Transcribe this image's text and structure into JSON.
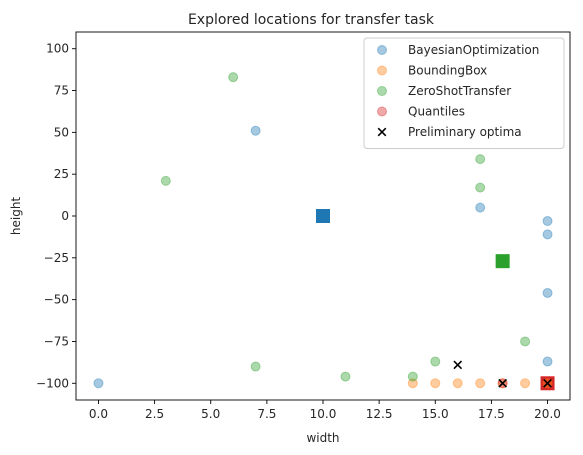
{
  "chart_data": {
    "type": "scatter",
    "title": "Explored locations for transfer task",
    "xlabel": "width",
    "ylabel": "height",
    "xlim": [
      -1,
      21
    ],
    "ylim": [
      -110,
      110
    ],
    "xticks": [
      0.0,
      2.5,
      5.0,
      7.5,
      10.0,
      12.5,
      15.0,
      17.5,
      20.0
    ],
    "xtick_labels": [
      "0.0",
      "2.5",
      "5.0",
      "7.5",
      "10.0",
      "12.5",
      "15.0",
      "17.5",
      "20.0"
    ],
    "yticks": [
      -100,
      -75,
      -50,
      -25,
      0,
      25,
      50,
      75,
      100
    ],
    "ytick_labels": [
      "−100",
      "−75",
      "−50",
      "−25",
      "0",
      "25",
      "50",
      "75",
      "100"
    ],
    "grid": false,
    "legend_position": "top-right",
    "series": [
      {
        "name": "BayesianOptimization",
        "color": "#1f77b4",
        "marker": "circle",
        "points": [
          [
            0,
            -100
          ],
          [
            7,
            51
          ],
          [
            17,
            5
          ],
          [
            20,
            -3
          ],
          [
            20,
            -11
          ],
          [
            20,
            -46
          ],
          [
            20,
            -87
          ]
        ],
        "optimum": [
          10,
          0
        ]
      },
      {
        "name": "BoundingBox",
        "color": "#ff7f0e",
        "marker": "circle",
        "points": [
          [
            14,
            -100
          ],
          [
            15,
            -100
          ],
          [
            16,
            -100
          ],
          [
            17,
            -100
          ],
          [
            18,
            -100
          ],
          [
            19,
            -100
          ],
          [
            20,
            -100
          ]
        ],
        "optimum": null
      },
      {
        "name": "ZeroShotTransfer",
        "color": "#2ca02c",
        "marker": "circle",
        "points": [
          [
            3,
            21
          ],
          [
            6,
            83
          ],
          [
            7,
            -90
          ],
          [
            11,
            -96
          ],
          [
            14,
            -96
          ],
          [
            15,
            -87
          ],
          [
            17,
            34
          ],
          [
            17,
            17
          ],
          [
            19,
            -75
          ]
        ],
        "optimum": [
          18,
          -27
        ]
      },
      {
        "name": "Quantiles",
        "color": "#d62728",
        "marker": "circle",
        "points": [
          [
            18,
            -100
          ]
        ],
        "optimum": [
          20,
          -100
        ]
      }
    ],
    "preliminary_optima": {
      "name": "Preliminary optima",
      "color": "#000000",
      "marker": "x",
      "points": [
        [
          16,
          -89
        ],
        [
          18,
          -100
        ],
        [
          20,
          -100
        ]
      ]
    }
  }
}
